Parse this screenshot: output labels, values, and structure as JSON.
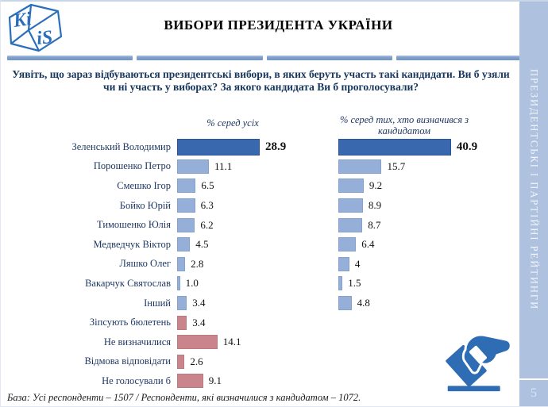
{
  "header": {
    "title": "ВИБОРИ ПРЕЗИДЕНТА УКРАЇНИ",
    "logo": {
      "top_text": "Ki",
      "side_text": "iS"
    }
  },
  "question": "Уявіть, що зараз відбуваються президентські вибори, в яких беруть участь такі кандидати. Ви б узяли чи ні участь у виборах? За якого кандидата Ви б проголосували?",
  "sidebar": {
    "vertical_text": "ПРЕЗИДЕНТСЬКІ І ПАРТІЙНІ РЕЙТИНГИ",
    "page_number": "5"
  },
  "footnote": "База: Усі респонденти – 1507 / Респонденти, які визначилися з кандидатом – 1072.",
  "icons": {
    "ballot_box": "hand inserting ballot into slot",
    "logo_cube": "KIIS wireframe cube logo"
  },
  "chart_data": {
    "type": "bar",
    "orientation": "horizontal",
    "value_labels": true,
    "grid": false,
    "axes_hidden": true,
    "categories": [
      "Зеленський Володимир",
      "Порошенко Петро",
      "Смешко Ігор",
      "Бойко Юрій",
      "Тимошенко Юлія",
      "Медведчук Віктор",
      "Ляшко Олег",
      "Вакарчук Святослав",
      "Інший",
      "Зіпсують бюлетень",
      "Не визначилися",
      "Відмова відповідати",
      "Не голосували б"
    ],
    "series": [
      {
        "name": "% серед усіх",
        "values": [
          28.9,
          11.1,
          6.5,
          6.3,
          6.2,
          4.5,
          2.8,
          1.0,
          3.4,
          3.4,
          14.1,
          2.6,
          9.1
        ],
        "values_display": [
          "28.9",
          "11.1",
          "6.5",
          "6.3",
          "6.2",
          "4.5",
          "2.8",
          "1.0",
          "3.4",
          "3.4",
          "14.1",
          "2.6",
          "9.1"
        ]
      },
      {
        "name": "% серед тих, хто визначився з кандидатом",
        "values": [
          40.9,
          15.7,
          9.2,
          8.9,
          8.7,
          6.4,
          4,
          1.5,
          4.8,
          null,
          null,
          null,
          null
        ],
        "values_display": [
          "40.9",
          "15.7",
          "9.2",
          "8.9",
          "8.7",
          "6.4",
          "4",
          "1.5",
          "4.8",
          null,
          null,
          null,
          null
        ]
      }
    ],
    "bar_styles": [
      "leader",
      "blue",
      "blue",
      "blue",
      "blue",
      "blue",
      "blue",
      "blue",
      "blue",
      "pink",
      "pink",
      "pink",
      "pink"
    ],
    "colors": {
      "leader": "#3a68af",
      "leader_border": "#2a5496",
      "blue": "#96afd8",
      "blue_border": "#84a2ce",
      "pink": "#ca858c",
      "pink_border": "#bb7980",
      "label_navy": "#1f3864",
      "sidebar_blue": "#aec2df",
      "icon_blue": "#2e6db4"
    }
  }
}
